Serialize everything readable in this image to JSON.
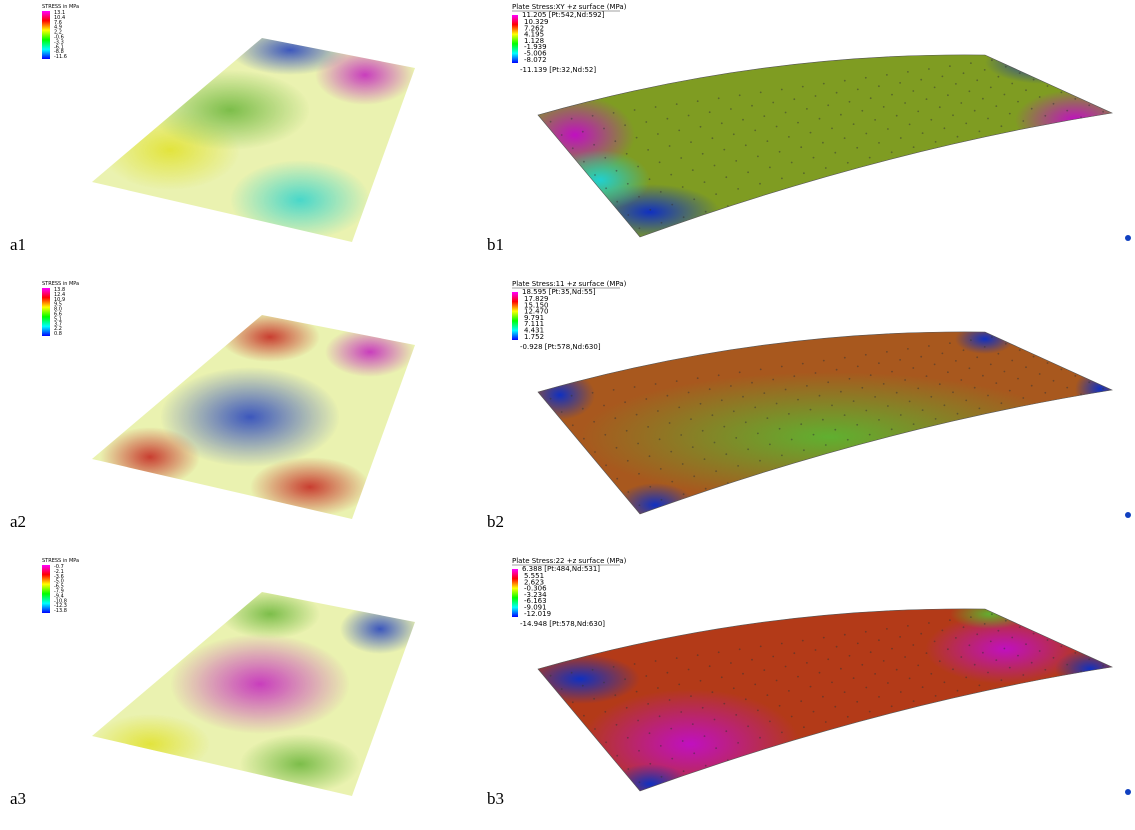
{
  "rows": [
    {
      "a": {
        "label": "a1",
        "legend_title": "STRESS in MPa",
        "legend_values": [
          "13.1",
          "10.4",
          "7.6",
          "4.9",
          "2.2",
          "-0.6",
          "-3.3",
          "-6.1",
          "-8.8",
          "-11.6"
        ]
      },
      "b": {
        "label": "b1",
        "title": "Plate Stress:XY +z surface  (MPa)",
        "max_label": "11.205 [Pt:542,Nd:592]",
        "legend_values": [
          "10.329",
          "7.262",
          "4.195",
          "1.128",
          "-1.939",
          "-5.006",
          "-8.072"
        ],
        "min_label": "-11.139 [Pt:32,Nd:52]"
      }
    },
    {
      "a": {
        "label": "a2",
        "legend_title": "STRESS in MPa",
        "legend_values": [
          "13.8",
          "12.4",
          "10.9",
          "9.5",
          "8.0",
          "6.6",
          "5.1",
          "3.7",
          "2.2",
          "0.8"
        ]
      },
      "b": {
        "label": "b2",
        "title": "Plate Stress:11 +z surface  (MPa)",
        "max_label": "18.595 [Pt:35,Nd:55]",
        "legend_values": [
          "17.829",
          "15.150",
          "12.470",
          "9.791",
          "7.111",
          "4.431",
          "1.752"
        ],
        "min_label": "-0.928 [Pt:578,Nd:630]"
      }
    },
    {
      "a": {
        "label": "a3",
        "legend_title": "STRESS in MPa",
        "legend_values": [
          "-0.7",
          "-2.1",
          "-3.6",
          "-5.0",
          "-6.5",
          "-7.9",
          "-9.4",
          "-10.8",
          "-12.3",
          "-13.8"
        ]
      },
      "b": {
        "label": "b3",
        "title": "Plate Stress:22 +z surface  (MPa)",
        "max_label": "6.388 [Pt:484,Nd:531]",
        "legend_values": [
          "5.551",
          "2.623",
          "-0.306",
          "-3.234",
          "-6.163",
          "-9.091",
          "-12.019"
        ],
        "min_label": "-14.948 [Pt:578,Nd:630]"
      }
    }
  ]
}
